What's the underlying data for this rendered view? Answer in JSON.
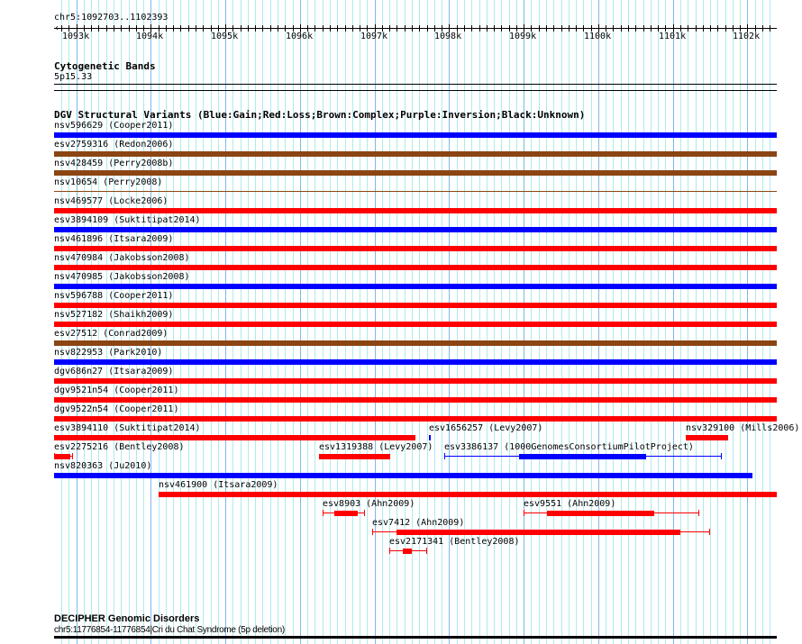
{
  "region": {
    "label": "chr5:1092703..1102393",
    "start": 1092703,
    "end": 1102393
  },
  "ruler": {
    "ticks": [
      "1093k",
      "1094k",
      "1095k",
      "1096k",
      "1097k",
      "1098k",
      "1099k",
      "1100k",
      "1101k",
      "1102k"
    ],
    "tick_values": [
      1093000,
      1094000,
      1095000,
      1096000,
      1097000,
      1098000,
      1099000,
      1100000,
      1101000,
      1102000
    ]
  },
  "cytoband": {
    "title": "Cytogenetic Bands",
    "band": "5p15.33"
  },
  "dgv": {
    "title": "DGV Structural Variants (Blue:Gain;Red:Loss;Brown:Complex;Purple:Inversion;Black:Unknown)",
    "colors": {
      "gain": "#0000ff",
      "loss": "#ff0000",
      "complex": "#8b4513",
      "inversion": "#800080",
      "unknown": "#000000"
    },
    "rows": [
      [
        {
          "label": "nsv596629 (Cooper2011)",
          "type": "gain",
          "start": 1092703,
          "end": 1102393
        }
      ],
      [
        {
          "label": "esv2759316 (Redon2006)",
          "type": "complex",
          "start": 1092703,
          "end": 1102393
        }
      ],
      [
        {
          "label": "nsv428459 (Perry2008b)",
          "type": "complex",
          "start": 1092703,
          "end": 1102393
        }
      ],
      [
        {
          "label": "nsv10654 (Perry2008)",
          "type": "complex",
          "start": 1092703,
          "end": 1102393,
          "thin": true
        }
      ],
      [
        {
          "label": "nsv469577 (Locke2006)",
          "type": "loss",
          "start": 1092703,
          "end": 1102393
        }
      ],
      [
        {
          "label": "esv3894109 (Suktitipat2014)",
          "type": "gain",
          "start": 1092703,
          "end": 1102393
        }
      ],
      [
        {
          "label": "nsv461896 (Itsara2009)",
          "type": "loss",
          "start": 1092703,
          "end": 1102393
        }
      ],
      [
        {
          "label": "nsv470984 (Jakobsson2008)",
          "type": "loss",
          "start": 1092703,
          "end": 1102393
        }
      ],
      [
        {
          "label": "nsv470985 (Jakobsson2008)",
          "type": "gain",
          "start": 1092703,
          "end": 1102393
        }
      ],
      [
        {
          "label": "nsv596788 (Cooper2011)",
          "type": "loss",
          "start": 1092703,
          "end": 1102393
        }
      ],
      [
        {
          "label": "nsv527182 (Shaikh2009)",
          "type": "loss",
          "start": 1092703,
          "end": 1102393
        }
      ],
      [
        {
          "label": "esv27512 (Conrad2009)",
          "type": "complex",
          "start": 1092703,
          "end": 1102393
        }
      ],
      [
        {
          "label": "nsv822953 (Park2010)",
          "type": "gain",
          "start": 1092703,
          "end": 1102393
        }
      ],
      [
        {
          "label": "dgv686n27 (Itsara2009)",
          "type": "loss",
          "start": 1092703,
          "end": 1102393
        }
      ],
      [
        {
          "label": "dgv9521n54 (Cooper2011)",
          "type": "loss",
          "start": 1092703,
          "end": 1102393
        }
      ],
      [
        {
          "label": "dgv9522n54 (Cooper2011)",
          "type": "loss",
          "start": 1092703,
          "end": 1102393
        }
      ],
      [
        {
          "label": "esv3894110 (Suktitipat2014)",
          "type": "loss",
          "start": 1092703,
          "end": 1097547
        },
        {
          "label": "esv1656257 (Levy2007)",
          "type": "gain",
          "start": 1097728,
          "end": 1097752
        },
        {
          "label": "nsv329100 (Mills2006)",
          "type": "loss",
          "start": 1101171,
          "end": 1101739
        }
      ],
      [
        {
          "label": "esv2275216 (Bentley2008)",
          "type": "loss",
          "start": 1092703,
          "end": 1092945,
          "thickStart": 1092703,
          "thickEnd": 1092920
        },
        {
          "label": "esv1319388 (Levy2007)",
          "type": "loss",
          "start": 1096255,
          "end": 1097209
        },
        {
          "label": "esv3386137 (1000GenomesConsortiumPilotProject)",
          "type": "gain",
          "start": 1097934,
          "end": 1101642,
          "thickStart": 1098936,
          "thickEnd": 1100640
        }
      ],
      [
        {
          "label": "nsv820363 (Ju2010)",
          "type": "gain",
          "start": 1092703,
          "end": 1102065
        }
      ],
      [
        {
          "label": "nsv461900 (Itsara2009)",
          "type": "loss",
          "start": 1094104,
          "end": 1102393
        }
      ],
      [
        {
          "label": "esv8903 (Ahn2009)",
          "type": "loss",
          "start": 1096303,
          "end": 1096859,
          "thickStart": 1096460,
          "thickEnd": 1096774
        },
        {
          "label": "esv9551 (Ahn2009)",
          "type": "loss",
          "start": 1098997,
          "end": 1101340,
          "thickStart": 1099311,
          "thickEnd": 1100749
        }
      ],
      [
        {
          "label": "esv7412 (Ahn2009)",
          "type": "loss",
          "start": 1096967,
          "end": 1101485,
          "thickStart": 1097293,
          "thickEnd": 1101099
        }
      ],
      [
        {
          "label": "esv2171341 (Bentley2008)",
          "type": "loss",
          "start": 1097197,
          "end": 1097692,
          "thickStart": 1097378,
          "thickEnd": 1097499
        }
      ]
    ]
  },
  "decipher": {
    "title": "DECIPHER Genomic Disorders",
    "entry": "chr5:11776854-11776854|Cri du Chat Syndrome (5p deletion)"
  }
}
